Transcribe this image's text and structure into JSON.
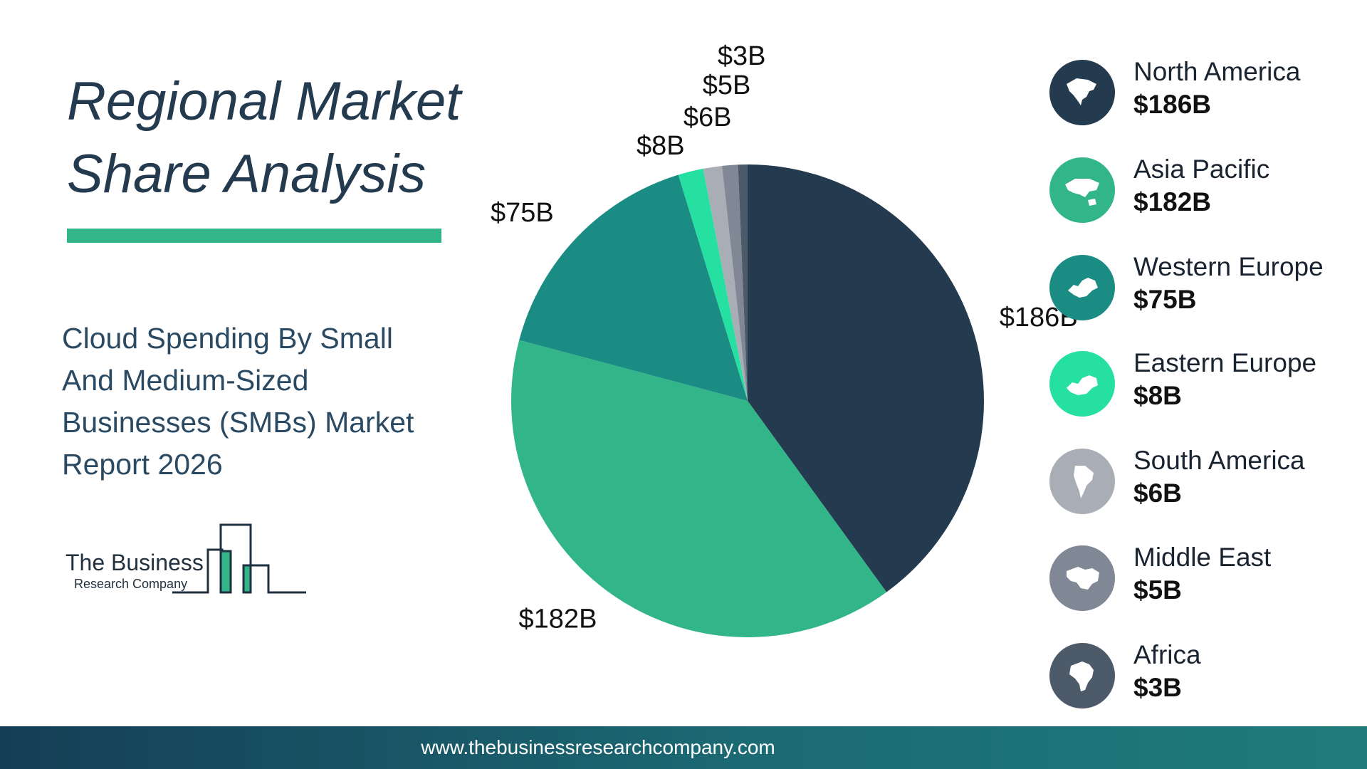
{
  "title": "Regional Market Share Analysis",
  "subtitle": "Cloud Spending By Small And Medium-Sized Businesses (SMBs) Market Report 2026",
  "logo": {
    "line1": "The Business",
    "line2": "Research Company"
  },
  "footer": {
    "url": "www.thebusinessresearchcompany.com"
  },
  "colors": {
    "accent": "#33b58a",
    "footer_start": "#153e56",
    "footer_end": "#1f7c7b"
  },
  "legend": [
    {
      "name": "North America",
      "value": "$186B",
      "color": "#243a4f",
      "icon": "north-america-map-icon"
    },
    {
      "name": "Asia Pacific",
      "value": "$182B",
      "color": "#33b58a",
      "icon": "asia-pacific-map-icon"
    },
    {
      "name": "Western Europe",
      "value": "$75B",
      "color": "#1b8c84",
      "icon": "western-europe-map-icon"
    },
    {
      "name": "Eastern Europe",
      "value": "$8B",
      "color": "#25e0a0",
      "icon": "eastern-europe-map-icon"
    },
    {
      "name": "South America",
      "value": "$6B",
      "color": "#a9adb6",
      "icon": "south-america-map-icon"
    },
    {
      "name": "Middle East",
      "value": "$5B",
      "color": "#7f8894",
      "icon": "middle-east-map-icon"
    },
    {
      "name": "Africa",
      "value": "$3B",
      "color": "#4d5a6a",
      "icon": "africa-map-icon"
    }
  ],
  "chart_data": {
    "type": "pie",
    "title": "",
    "categories": [
      "North America",
      "Asia Pacific",
      "Western Europe",
      "Eastern Europe",
      "South America",
      "Middle East",
      "Africa"
    ],
    "values": [
      186,
      182,
      75,
      8,
      6,
      5,
      3
    ],
    "labels": [
      "$186B",
      "$182B",
      "$75B",
      "$8B",
      "$6B",
      "$5B",
      "$3B"
    ],
    "colors": [
      "#243a4f",
      "#33b58a",
      "#1b8c84",
      "#25e0a0",
      "#a9adb6",
      "#7f8894",
      "#4d5a6a"
    ],
    "unit": "USD billions",
    "legend": "right"
  }
}
